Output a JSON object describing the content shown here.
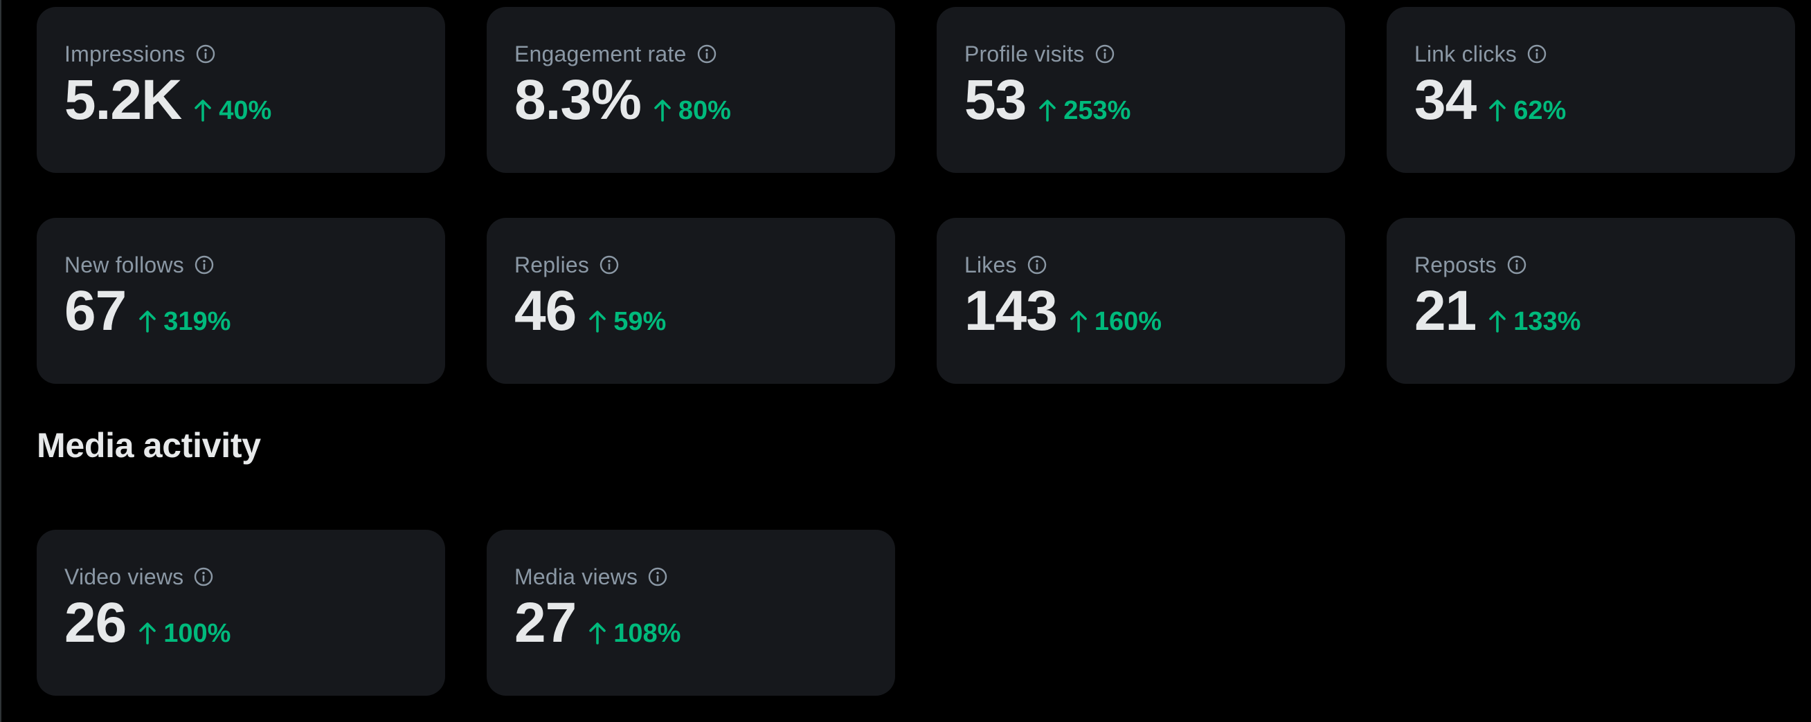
{
  "overview_cards": [
    {
      "label": "Impressions",
      "value": "5.2K",
      "change": "40%"
    },
    {
      "label": "Engagement rate",
      "value": "8.3%",
      "change": "80%"
    },
    {
      "label": "Profile visits",
      "value": "53",
      "change": "253%"
    },
    {
      "label": "Link clicks",
      "value": "34",
      "change": "62%"
    },
    {
      "label": "New follows",
      "value": "67",
      "change": "319%"
    },
    {
      "label": "Replies",
      "value": "46",
      "change": "59%"
    },
    {
      "label": "Likes",
      "value": "143",
      "change": "160%"
    },
    {
      "label": "Reposts",
      "value": "21",
      "change": "133%"
    }
  ],
  "media_section": {
    "title": "Media activity",
    "cards": [
      {
        "label": "Video views",
        "value": "26",
        "change": "100%"
      },
      {
        "label": "Media views",
        "value": "27",
        "change": "108%"
      }
    ]
  },
  "icons": {
    "info": "info-circle-icon",
    "trend": "arrow-up-icon"
  },
  "colors": {
    "background": "#000000",
    "card": "#16181c",
    "label": "#8b98a5",
    "value": "#e7e9ea",
    "positive": "#00ba7c"
  }
}
